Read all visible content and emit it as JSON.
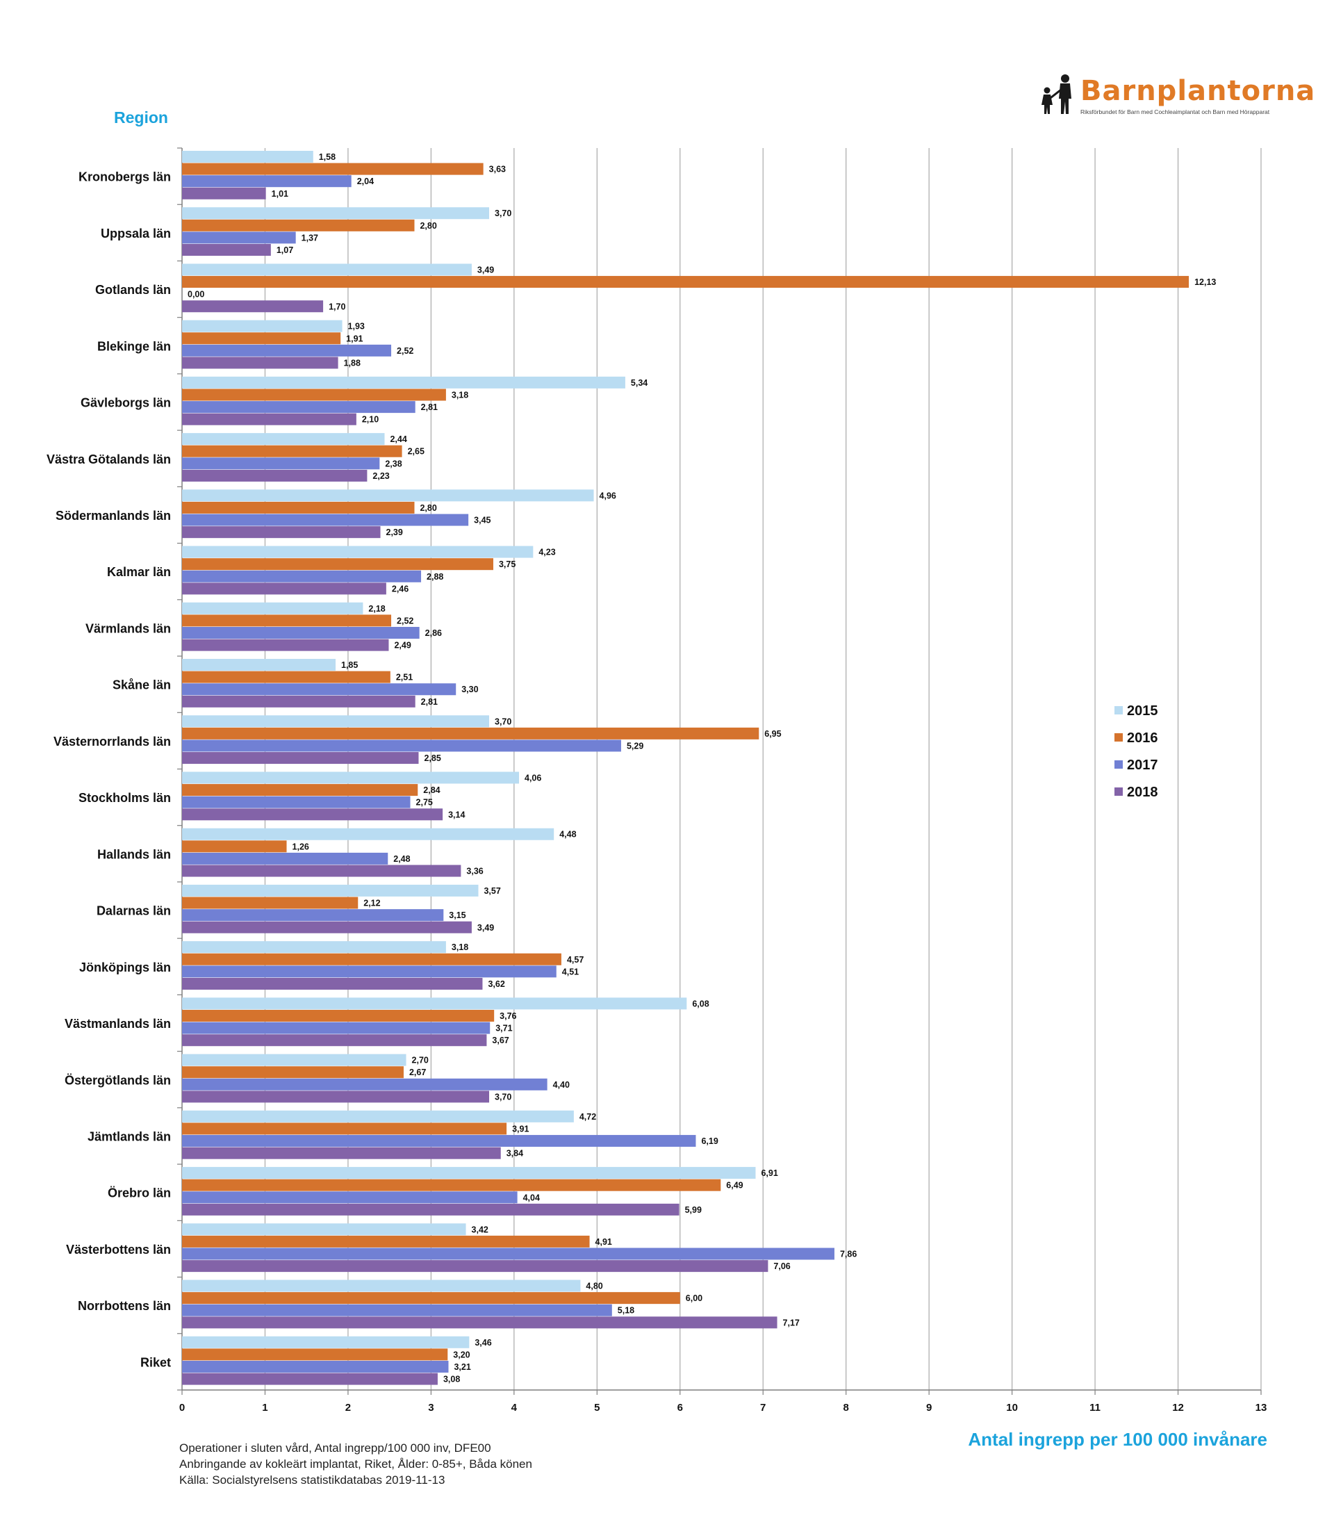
{
  "logo": {
    "name": "Barnplantorna",
    "tagline": "Riksförbundet för Barn med Cochleaimplantat och Barn med Hörapparat"
  },
  "notes": {
    "line1": "Operationer i sluten vård, Antal ingrepp/100 000 inv, DFE00",
    "line2": "Anbringande av kokleärt implantat, Riket, Ålder: 0-85+, Båda könen",
    "line3": "Källa: Socialstyrelsens statistikdatabas 2019-11-13"
  },
  "chart_data": {
    "type": "bar",
    "orientation": "horizontal",
    "ylabel": "Region",
    "xlabel": "Antal ingrepp per 100 000 invånare",
    "xlim": [
      0,
      13
    ],
    "xticks": [
      0,
      1,
      2,
      3,
      4,
      5,
      6,
      7,
      8,
      9,
      10,
      11,
      12,
      13
    ],
    "grid": true,
    "legend_position": "right",
    "categories": [
      "Kronobergs län",
      "Uppsala län",
      "Gotlands län",
      "Blekinge län",
      "Gävleborgs län",
      "Västra Götalands län",
      "Södermanlands län",
      "Kalmar län",
      "Värmlands län",
      "Skåne län",
      "Västernorrlands län",
      "Stockholms län",
      "Hallands län",
      "Dalarnas län",
      "Jönköpings län",
      "Västmanlands län",
      "Östergötlands län",
      "Jämtlands län",
      "Örebro län",
      "Västerbottens län",
      "Norrbottens län",
      "Riket"
    ],
    "series": [
      {
        "name": "2015",
        "color": "#b9dcf2",
        "values": [
          1.58,
          3.7,
          3.49,
          1.93,
          5.34,
          2.44,
          4.96,
          4.23,
          2.18,
          1.85,
          3.7,
          4.06,
          4.48,
          3.57,
          3.18,
          6.08,
          2.7,
          4.72,
          6.91,
          3.42,
          4.8,
          3.46
        ]
      },
      {
        "name": "2016",
        "color": "#d5732d",
        "values": [
          3.63,
          2.8,
          12.13,
          1.91,
          3.18,
          2.65,
          2.8,
          3.75,
          2.52,
          2.51,
          6.95,
          2.84,
          1.26,
          2.12,
          4.57,
          3.76,
          2.67,
          3.91,
          6.49,
          4.91,
          6.0,
          3.2
        ]
      },
      {
        "name": "2017",
        "color": "#7180d4",
        "values": [
          2.04,
          1.37,
          0.0,
          2.52,
          2.81,
          2.38,
          3.45,
          2.88,
          2.86,
          3.3,
          5.29,
          2.75,
          2.48,
          3.15,
          4.51,
          3.71,
          4.4,
          6.19,
          4.04,
          7.86,
          5.18,
          3.21
        ]
      },
      {
        "name": "2018",
        "color": "#8363a8",
        "values": [
          1.01,
          1.07,
          1.7,
          1.88,
          2.1,
          2.23,
          2.39,
          2.46,
          2.49,
          2.81,
          2.85,
          3.14,
          3.36,
          3.49,
          3.62,
          3.67,
          3.7,
          3.84,
          5.99,
          7.06,
          7.17,
          3.08
        ]
      }
    ]
  }
}
